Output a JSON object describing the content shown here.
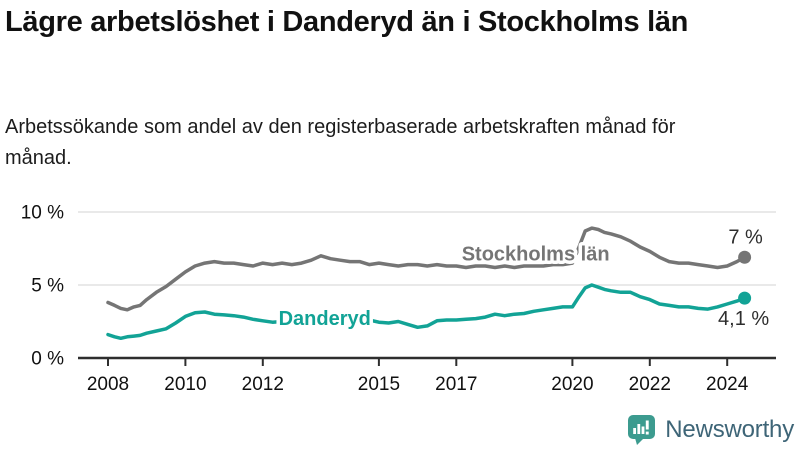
{
  "header": {
    "title": "Lägre arbetslöshet i Danderyd än i Stockholms län",
    "subtitle": "Arbetssökande som andel av den registerbaserade arbetskraften månad för månad."
  },
  "chart_data": {
    "type": "line",
    "title": "Lägre arbetslöshet i Danderyd än i Stockholms län",
    "xlabel": "",
    "ylabel": "",
    "unit": "%",
    "grid": "horizontal-only",
    "legend": "inline-labels",
    "x_axis": {
      "range": [
        2007.6,
        2024.6
      ],
      "ticks": [
        2008,
        2010,
        2012,
        2015,
        2017,
        2020,
        2022,
        2024
      ]
    },
    "y_axis": {
      "range": [
        0,
        10
      ],
      "ticks": [
        {
          "value": 0,
          "label": "0 %"
        },
        {
          "value": 5,
          "label": "5 %"
        },
        {
          "value": 10,
          "label": "10 %"
        }
      ]
    },
    "colors": {
      "grid": "#dcdcdc",
      "axis": "#2e2e2e",
      "tick_text": "#111111",
      "end_label_text": "#2d2d2d"
    },
    "series": [
      {
        "name": "Stockholms län",
        "color": "#757575",
        "end_label": "7 %",
        "label_pos": {
          "x": 2019.05,
          "y": 7.15
        },
        "points": [
          [
            2008.0,
            3.8
          ],
          [
            2008.17,
            3.6
          ],
          [
            2008.33,
            3.4
          ],
          [
            2008.5,
            3.3
          ],
          [
            2008.67,
            3.5
          ],
          [
            2008.83,
            3.6
          ],
          [
            2009.0,
            4.0
          ],
          [
            2009.25,
            4.5
          ],
          [
            2009.5,
            4.9
          ],
          [
            2009.75,
            5.4
          ],
          [
            2010.0,
            5.9
          ],
          [
            2010.25,
            6.3
          ],
          [
            2010.5,
            6.5
          ],
          [
            2010.75,
            6.6
          ],
          [
            2011.0,
            6.5
          ],
          [
            2011.25,
            6.5
          ],
          [
            2011.5,
            6.4
          ],
          [
            2011.75,
            6.3
          ],
          [
            2012.0,
            6.5
          ],
          [
            2012.25,
            6.4
          ],
          [
            2012.5,
            6.5
          ],
          [
            2012.75,
            6.4
          ],
          [
            2013.0,
            6.5
          ],
          [
            2013.25,
            6.7
          ],
          [
            2013.5,
            7.0
          ],
          [
            2013.75,
            6.8
          ],
          [
            2014.0,
            6.7
          ],
          [
            2014.25,
            6.6
          ],
          [
            2014.5,
            6.6
          ],
          [
            2014.75,
            6.4
          ],
          [
            2015.0,
            6.5
          ],
          [
            2015.25,
            6.4
          ],
          [
            2015.5,
            6.3
          ],
          [
            2015.75,
            6.4
          ],
          [
            2016.0,
            6.4
          ],
          [
            2016.25,
            6.3
          ],
          [
            2016.5,
            6.4
          ],
          [
            2016.75,
            6.3
          ],
          [
            2017.0,
            6.3
          ],
          [
            2017.25,
            6.2
          ],
          [
            2017.5,
            6.3
          ],
          [
            2017.75,
            6.3
          ],
          [
            2018.0,
            6.2
          ],
          [
            2018.25,
            6.3
          ],
          [
            2018.5,
            6.2
          ],
          [
            2018.75,
            6.3
          ],
          [
            2019.0,
            6.3
          ],
          [
            2019.25,
            6.3
          ],
          [
            2019.5,
            6.4
          ],
          [
            2019.75,
            6.4
          ],
          [
            2020.0,
            6.5
          ],
          [
            2020.17,
            7.6
          ],
          [
            2020.33,
            8.7
          ],
          [
            2020.5,
            8.9
          ],
          [
            2020.67,
            8.8
          ],
          [
            2020.83,
            8.6
          ],
          [
            2021.0,
            8.5
          ],
          [
            2021.25,
            8.3
          ],
          [
            2021.5,
            8.0
          ],
          [
            2021.75,
            7.6
          ],
          [
            2022.0,
            7.3
          ],
          [
            2022.25,
            6.9
          ],
          [
            2022.5,
            6.6
          ],
          [
            2022.75,
            6.5
          ],
          [
            2023.0,
            6.5
          ],
          [
            2023.25,
            6.4
          ],
          [
            2023.5,
            6.3
          ],
          [
            2023.75,
            6.2
          ],
          [
            2024.0,
            6.3
          ],
          [
            2024.25,
            6.6
          ],
          [
            2024.45,
            6.9
          ]
        ]
      },
      {
        "name": "Danderyd",
        "color": "#12A396",
        "end_label": "4,1 %",
        "label_pos": {
          "x": 2013.6,
          "y": 2.75
        },
        "points": [
          [
            2008.0,
            1.6
          ],
          [
            2008.17,
            1.45
          ],
          [
            2008.33,
            1.35
          ],
          [
            2008.5,
            1.45
          ],
          [
            2008.67,
            1.5
          ],
          [
            2008.83,
            1.55
          ],
          [
            2009.0,
            1.7
          ],
          [
            2009.25,
            1.85
          ],
          [
            2009.5,
            2.0
          ],
          [
            2009.75,
            2.4
          ],
          [
            2010.0,
            2.85
          ],
          [
            2010.25,
            3.1
          ],
          [
            2010.5,
            3.15
          ],
          [
            2010.75,
            3.0
          ],
          [
            2011.0,
            2.95
          ],
          [
            2011.25,
            2.9
          ],
          [
            2011.5,
            2.8
          ],
          [
            2011.75,
            2.65
          ],
          [
            2012.0,
            2.55
          ],
          [
            2012.25,
            2.45
          ],
          [
            2012.5,
            2.5
          ],
          [
            2012.75,
            2.6
          ],
          [
            2013.0,
            2.75
          ],
          [
            2013.25,
            2.9
          ],
          [
            2013.5,
            2.85
          ],
          [
            2013.75,
            2.8
          ],
          [
            2014.0,
            2.8
          ],
          [
            2014.25,
            2.75
          ],
          [
            2014.5,
            2.7
          ],
          [
            2014.75,
            2.6
          ],
          [
            2015.0,
            2.45
          ],
          [
            2015.25,
            2.4
          ],
          [
            2015.5,
            2.5
          ],
          [
            2015.75,
            2.3
          ],
          [
            2016.0,
            2.1
          ],
          [
            2016.25,
            2.2
          ],
          [
            2016.5,
            2.55
          ],
          [
            2016.75,
            2.6
          ],
          [
            2017.0,
            2.6
          ],
          [
            2017.25,
            2.65
          ],
          [
            2017.5,
            2.7
          ],
          [
            2017.75,
            2.8
          ],
          [
            2018.0,
            3.0
          ],
          [
            2018.25,
            2.9
          ],
          [
            2018.5,
            3.0
          ],
          [
            2018.75,
            3.05
          ],
          [
            2019.0,
            3.2
          ],
          [
            2019.25,
            3.3
          ],
          [
            2019.5,
            3.4
          ],
          [
            2019.75,
            3.5
          ],
          [
            2020.0,
            3.5
          ],
          [
            2020.17,
            4.2
          ],
          [
            2020.33,
            4.8
          ],
          [
            2020.5,
            5.0
          ],
          [
            2020.67,
            4.85
          ],
          [
            2020.83,
            4.7
          ],
          [
            2021.0,
            4.6
          ],
          [
            2021.25,
            4.5
          ],
          [
            2021.5,
            4.5
          ],
          [
            2021.75,
            4.2
          ],
          [
            2022.0,
            4.0
          ],
          [
            2022.25,
            3.7
          ],
          [
            2022.5,
            3.6
          ],
          [
            2022.75,
            3.5
          ],
          [
            2023.0,
            3.5
          ],
          [
            2023.25,
            3.4
          ],
          [
            2023.5,
            3.35
          ],
          [
            2023.75,
            3.5
          ],
          [
            2024.0,
            3.7
          ],
          [
            2024.25,
            3.9
          ],
          [
            2024.45,
            4.1
          ]
        ]
      }
    ]
  },
  "footer": {
    "brand": "Newsworthy",
    "brand_color": "#3E6577",
    "logo_color": "#3C9B8F",
    "logo_icon": "newsworthy-bar-chart-speech-bubble"
  }
}
